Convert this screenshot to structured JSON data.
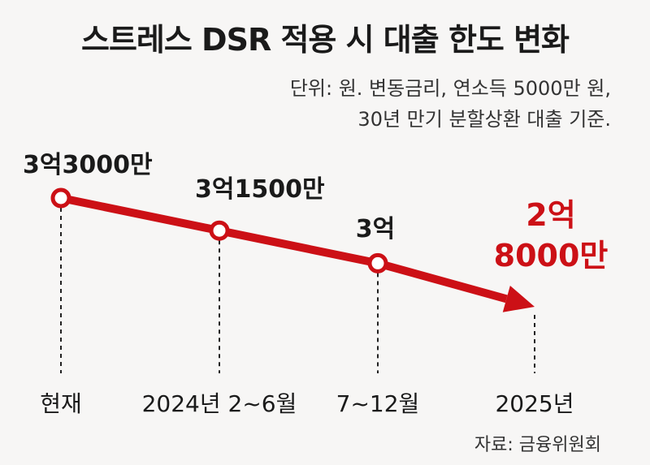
{
  "title": "스트레스 DSR 적용 시 대출 한도 변화",
  "subtitle_line1": "단위: 원. 변동금리, 연소득 5000만 원,",
  "subtitle_line2": "30년 만기 분할상환 대출 기준.",
  "source": "자료: 금융위원회",
  "colors": {
    "line": "#cc1016",
    "highlight": "#cc1016",
    "text": "#1a1a1a",
    "background": "#f7f6f5"
  },
  "chart_data": {
    "type": "line",
    "title": "스트레스 DSR 적용 시 대출 한도 변화",
    "categories": [
      "현재",
      "2024년 2~6월",
      "7~12월",
      "2025년"
    ],
    "values": [
      330000000,
      315000000,
      300000000,
      280000000
    ],
    "value_labels": [
      "3억3000만",
      "3억1500만",
      "3억",
      "2억 8000만"
    ],
    "highlight_index": 3,
    "unit": "원",
    "grid": false,
    "legend": "none"
  }
}
